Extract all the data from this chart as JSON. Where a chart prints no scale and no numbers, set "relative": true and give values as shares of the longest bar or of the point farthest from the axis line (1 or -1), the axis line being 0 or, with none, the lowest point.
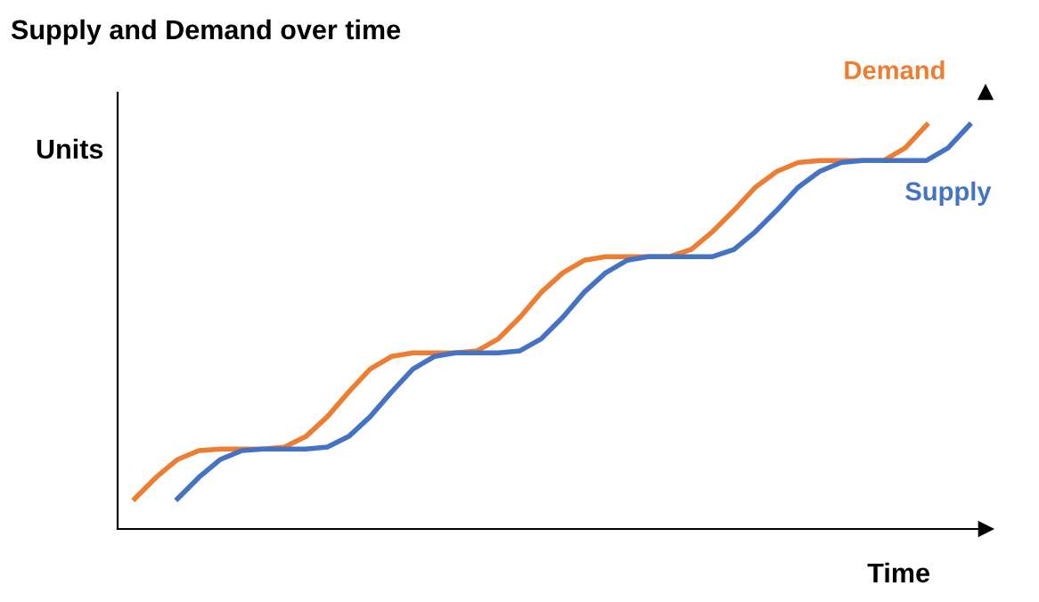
{
  "chart_data": {
    "type": "line",
    "title": "Supply and Demand over time",
    "xlabel": "Time",
    "ylabel": "Units",
    "relative": true,
    "legend": false,
    "marker": "none",
    "line_style": "solid",
    "categories": [
      null,
      null,
      null,
      null,
      null,
      null,
      null,
      null,
      null,
      null,
      null,
      null,
      null,
      null,
      null,
      null,
      null,
      null,
      null,
      null,
      null,
      null,
      null,
      null,
      null,
      null,
      null,
      null,
      null,
      null,
      null,
      null,
      null,
      null,
      null,
      null,
      null,
      null,
      null,
      null
    ],
    "series": [
      {
        "name": "Demand",
        "color": "#ed7d31",
        "values": [
          0.075,
          0.128,
          0.172,
          0.194,
          0.198,
          0.198,
          0.198,
          0.203,
          0.229,
          0.278,
          0.339,
          0.396,
          0.427,
          0.436,
          0.436,
          0.436,
          0.441,
          0.471,
          0.524,
          0.586,
          0.634,
          0.665,
          0.674,
          0.674,
          0.674,
          0.674,
          0.692,
          0.736,
          0.789,
          0.846,
          0.885,
          0.907,
          0.912,
          0.912,
          0.912,
          0.912,
          0.943,
          1.0,
          null,
          null
        ]
      },
      {
        "name": "Supply",
        "color": "#4472c4",
        "values": [
          null,
          null,
          0.075,
          0.128,
          0.172,
          0.194,
          0.198,
          0.198,
          0.198,
          0.203,
          0.229,
          0.278,
          0.339,
          0.396,
          0.427,
          0.436,
          0.436,
          0.436,
          0.441,
          0.471,
          0.524,
          0.586,
          0.634,
          0.665,
          0.674,
          0.674,
          0.674,
          0.674,
          0.692,
          0.736,
          0.789,
          0.846,
          0.885,
          0.907,
          0.912,
          0.912,
          0.912,
          0.912,
          0.943,
          1.0
        ]
      }
    ]
  }
}
